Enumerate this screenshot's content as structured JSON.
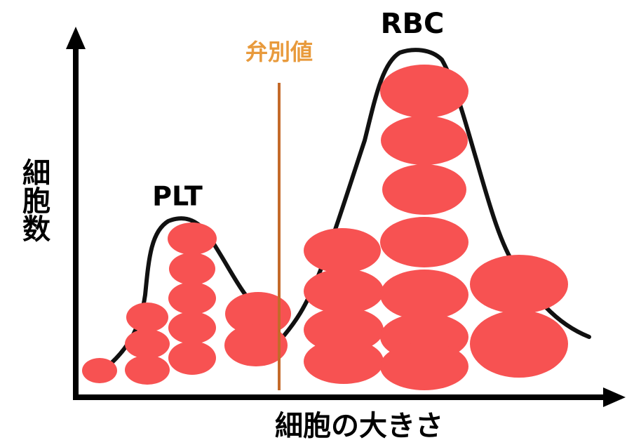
{
  "labels": {
    "rbc": "RBC",
    "plt": "PLT",
    "threshold": "弁別値",
    "y_axis": "細胞数",
    "x_axis": "細胞の大きさ"
  }
}
